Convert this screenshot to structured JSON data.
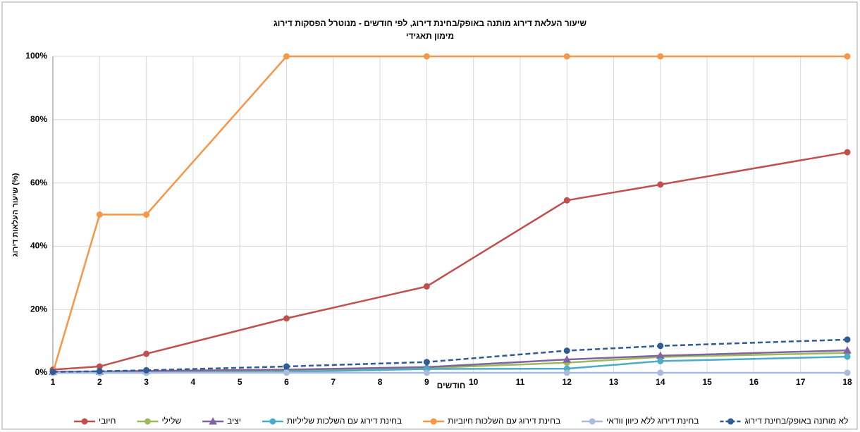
{
  "chart_data": {
    "type": "line",
    "title": "שיעור העלאת דירוג מותנה באופק/בחינת דירוג, לפי חודשים - מנוטרל הפסקות דירוג",
    "subtitle": "מימון תאגידי",
    "x_label": "חודשים",
    "y_label": "שיעור העלאות דירוג (%)",
    "x": [
      1,
      2,
      3,
      6,
      9,
      12,
      14,
      18
    ],
    "xlim": [
      1,
      18
    ],
    "xticks": [
      1,
      2,
      3,
      4,
      5,
      6,
      7,
      8,
      9,
      10,
      11,
      12,
      13,
      14,
      15,
      16,
      17,
      18
    ],
    "ylim": [
      0,
      100
    ],
    "yticks": [
      {
        "value": 0,
        "label": "0%"
      },
      {
        "value": 20,
        "label": "20%"
      },
      {
        "value": 40,
        "label": "40%"
      },
      {
        "value": 60,
        "label": "60%"
      },
      {
        "value": 80,
        "label": "80%"
      },
      {
        "value": 100,
        "label": "100%"
      }
    ],
    "grid": true,
    "legend": "bottom",
    "series": [
      {
        "name": "חיובי",
        "color": "#c0504d",
        "marker": "circle",
        "values": [
          1,
          2,
          6,
          17.2,
          27.3,
          54.5,
          59.5,
          69.7
        ]
      },
      {
        "name": "שלילי",
        "color": "#9bbb59",
        "marker": "circle",
        "values": [
          0.3,
          0.3,
          0.5,
          0.8,
          1.5,
          3.2,
          5,
          6.3
        ]
      },
      {
        "name": "יציב",
        "color": "#8064a2",
        "marker": "triangle",
        "values": [
          0.3,
          0.4,
          0.6,
          1,
          1.8,
          4.2,
          5.4,
          7.1
        ]
      },
      {
        "name": "בחינת דירוג עם השלכות שליליות",
        "color": "#4bacc6",
        "marker": "circle",
        "values": [
          0,
          0,
          0,
          0.3,
          1.2,
          1.3,
          3.7,
          5.1
        ]
      },
      {
        "name": "בחינת דירוג עם השלכות חיוביות",
        "color": "#f79646",
        "marker": "circle",
        "values": [
          0,
          50,
          50,
          100,
          100,
          100,
          100,
          100
        ]
      },
      {
        "name": "בחינת דירוג ללא כיוון וודאי",
        "color": "#a9bcd9",
        "marker": "circle",
        "values": [
          0,
          0,
          0,
          0,
          0,
          0,
          0,
          0
        ]
      },
      {
        "name": "לא מותנה באופק/בחינת דירוג",
        "color": "#2f5c94",
        "marker": "circle",
        "dashed": true,
        "values": [
          0.3,
          0.5,
          0.8,
          2,
          3.4,
          7,
          8.5,
          10.5
        ]
      }
    ]
  }
}
